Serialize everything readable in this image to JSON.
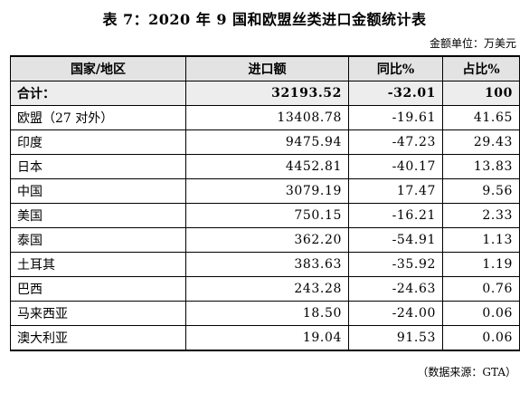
{
  "title": "表 7：2020 年 9 国和欧盟丝类进口金额统计表",
  "unit": "金额单位：万美元",
  "table": {
    "headers": [
      "国家/地区",
      "进口额",
      "同比%",
      "占比%"
    ],
    "total": {
      "label": "合计：",
      "import": "32193.52",
      "yoy": "-32.01",
      "share": "100"
    },
    "rows": [
      {
        "name": "欧盟（27 对外）",
        "import": "13408.78",
        "yoy": "-19.61",
        "share": "41.65"
      },
      {
        "name": "印度",
        "import": "9475.94",
        "yoy": "-47.23",
        "share": "29.43"
      },
      {
        "name": "日本",
        "import": "4452.81",
        "yoy": "-40.17",
        "share": "13.83"
      },
      {
        "name": "中国",
        "import": "3079.19",
        "yoy": "17.47",
        "share": "9.56"
      },
      {
        "name": "美国",
        "import": "750.15",
        "yoy": "-16.21",
        "share": "2.33"
      },
      {
        "name": "泰国",
        "import": "362.20",
        "yoy": "-54.91",
        "share": "1.13"
      },
      {
        "name": "土耳其",
        "import": "383.63",
        "yoy": "-35.92",
        "share": "1.19"
      },
      {
        "name": "巴西",
        "import": "243.28",
        "yoy": "-24.63",
        "share": "0.76"
      },
      {
        "name": "马来西亚",
        "import": "18.50",
        "yoy": "-24.00",
        "share": "0.06"
      },
      {
        "name": "澳大利亚",
        "import": "19.04",
        "yoy": "91.53",
        "share": "0.06"
      }
    ]
  },
  "source": "（数据来源：GTA）"
}
